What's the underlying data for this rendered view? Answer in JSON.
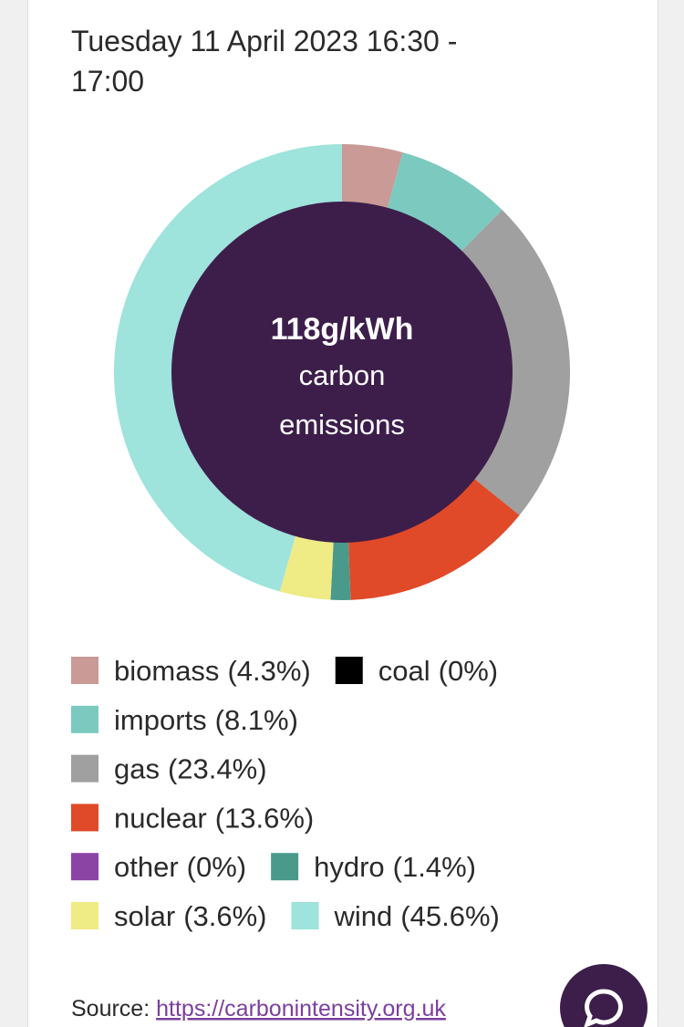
{
  "chart_data": {
    "type": "pie",
    "title": "Tuesday 11 April 2023 16:30 - 17:00",
    "center_label": "118g/kWh",
    "center_caption": "carbon emissions",
    "categories": [
      "biomass",
      "coal",
      "imports",
      "gas",
      "nuclear",
      "other",
      "hydro",
      "solar",
      "wind"
    ],
    "values": [
      4.3,
      0,
      8.1,
      23.4,
      13.6,
      0,
      1.4,
      3.6,
      45.6
    ],
    "value_labels": [
      "(4.3%)",
      "(0%)",
      "(8.1%)",
      "(23.4%)",
      "(13.6%)",
      "(0%)",
      "(1.4%)",
      "(3.6%)",
      "(45.6%)"
    ],
    "colors": [
      "#c99a96",
      "#000000",
      "#7ccabf",
      "#a0a0a0",
      "#e04a28",
      "#8b44a4",
      "#4a9a8c",
      "#efeb85",
      "#9ee3dc"
    ],
    "source_label": "Source:",
    "source_url": "https://carbonintensity.org.uk"
  }
}
